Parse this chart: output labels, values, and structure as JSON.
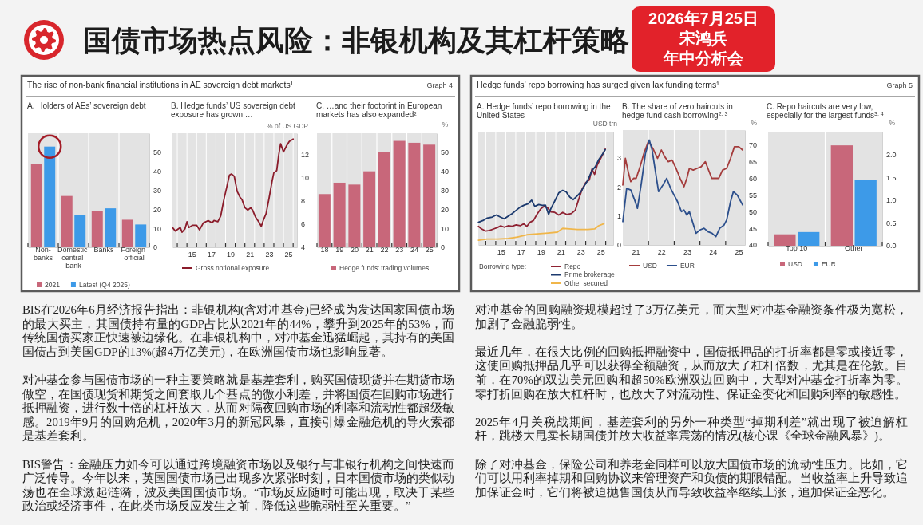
{
  "chart_data": [
    {
      "type": "other",
      "title": "国债市场热点风险：非银机构及其杠杆策略",
      "annotations": [
        "2026年7月25日",
        "宋鸿兵",
        "年中分析会"
      ]
    },
    {
      "type": "other",
      "title": "The rise of non-bank financial institutions in AE sovereign debt markets¹",
      "annotations": [
        "Graph 4"
      ]
    },
    {
      "type": "bar",
      "title": "A. Holders of AEs’ sovereign debt",
      "categories": [
        "Non-banks",
        "Domestic central bank",
        "Banks",
        "Foreign official"
      ],
      "series": [
        {
          "name": "2021",
          "color": "#c8677a",
          "values": [
            44,
            27,
            19,
            14.5
          ]
        },
        {
          "name": "Latest (Q4 2025)",
          "color": "#3d9ae8",
          "values": [
            53,
            17,
            20.5,
            12
          ]
        }
      ],
      "ylim": [
        0,
        60
      ],
      "yticks": [
        0,
        10,
        20,
        30,
        40,
        50
      ],
      "grid": "x",
      "legend": "bottom"
    },
    {
      "type": "line",
      "title": "B. Hedge funds’ US sovereign debt exposure has grown …",
      "ylabel": "% of US GDP",
      "series": [
        {
          "name": "Gross notional exposure",
          "color": "#8b1c2b",
          "x": [
            13.0,
            13.3,
            13.8,
            14.0,
            14.3,
            14.5,
            14.7,
            15.1,
            15.5,
            15.8,
            16.2,
            16.7,
            17.1,
            17.3,
            17.7,
            18.0,
            18.3,
            18.6,
            18.9,
            19.1,
            19.4,
            19.7,
            20.0,
            20.2,
            20.5,
            20.8,
            21.1,
            21.3,
            21.6,
            22.0,
            22.2,
            22.4,
            22.7,
            23.0,
            23.3,
            23.5,
            23.8,
            24.0,
            24.2,
            24.5,
            24.8,
            25.1,
            25.5
          ],
          "values": [
            5.7,
            5.4,
            5.7,
            5.3,
            5.6,
            6.2,
            5.7,
            5.9,
            5.9,
            5.5,
            6.1,
            6.3,
            6.1,
            6.3,
            6.2,
            6.7,
            8.0,
            9.1,
            10.2,
            10.3,
            10.1,
            8.8,
            8.3,
            8.1,
            7.4,
            7.2,
            7.4,
            7.2,
            6.6,
            6.1,
            5.8,
            6.3,
            6.9,
            8.2,
            9.6,
            10.4,
            10.6,
            11.9,
            12.9,
            12.2,
            12.7,
            13.1,
            13.3
          ]
        }
      ],
      "xlim": [
        13.0,
        25.9
      ],
      "xticks": [
        {
          "value": 13.5,
          "label": null
        },
        {
          "value": 14.5,
          "label": null
        },
        15,
        {
          "value": 15.5,
          "label": null
        },
        {
          "value": 16.5,
          "label": null
        },
        17,
        {
          "value": 17.5,
          "label": null
        },
        {
          "value": 18.5,
          "label": null
        },
        19,
        {
          "value": 19.5,
          "label": null
        },
        {
          "value": 20.5,
          "label": null
        },
        21,
        {
          "value": 21.5,
          "label": null
        },
        {
          "value": 22.5,
          "label": null
        },
        23,
        {
          "value": 23.5,
          "label": null
        },
        {
          "value": 24.5,
          "label": null
        },
        25,
        {
          "value": 25.5,
          "label": null
        }
      ],
      "ylim": [
        4,
        13.8
      ],
      "yticks": [
        4,
        6,
        8,
        10,
        12
      ],
      "grid": "x",
      "legend": "bottom"
    },
    {
      "type": "bar",
      "title": "C. …and their footprint in European markets has also expanded²",
      "ylabel": "%",
      "categories": [
        "18",
        "19",
        "20",
        "21",
        "22",
        "23",
        "24",
        "25"
      ],
      "series": [
        {
          "name": "Hedge funds’ trading volumes",
          "color": "#c8677a",
          "values": [
            28,
            34,
            33,
            40,
            50,
            56,
            55,
            54
          ]
        }
      ],
      "ylim": [
        0,
        60
      ],
      "yticks": [
        0,
        10,
        20,
        30,
        40,
        50
      ],
      "grid": "x",
      "legend": "bottom"
    },
    {
      "type": "other",
      "title": "Hedge funds’ repo borrowing has surged given lax funding terms¹",
      "annotations": [
        "Graph 5"
      ]
    },
    {
      "type": "line",
      "title": "A. Hedge funds’ repo borrowing in the United States",
      "ylabel": "USD trn",
      "legend_title": "Borrowing type:",
      "series": [
        {
          "name": "Repo",
          "color": "#8f2232",
          "x": [
            12.77,
            13.09,
            13.48,
            13.88,
            14.28,
            14.68,
            15.0,
            15.35,
            15.74,
            16.14,
            16.54,
            16.94,
            17.29,
            17.61,
            17.93,
            18.27,
            18.62,
            19.0,
            19.34,
            19.68,
            20.0,
            20.4,
            20.8,
            21.2,
            21.6,
            22.07,
            22.45,
            22.79,
            23.14,
            23.51,
            23.86,
            24.12,
            24.39,
            24.65,
            24.92,
            25.19,
            25.45
          ],
          "values": [
            0.64,
            0.55,
            0.48,
            0.5,
            0.55,
            0.6,
            0.66,
            0.61,
            0.66,
            0.64,
            0.69,
            0.66,
            0.73,
            0.64,
            0.78,
            0.84,
            1.05,
            1.24,
            1.33,
            1.28,
            1.14,
            1.12,
            1.03,
            1.12,
            1.05,
            1.08,
            1.19,
            1.56,
            1.92,
            2.15,
            2.24,
            2.61,
            2.43,
            2.75,
            2.93,
            3.11,
            3.3
          ]
        },
        {
          "name": "Prime brokerage",
          "color": "#1c3a6e",
          "x": [
            12.77,
            13.22,
            13.62,
            14.15,
            14.55,
            14.95,
            15.35,
            15.74,
            16.14,
            16.54,
            16.94,
            17.34,
            17.74,
            18.09,
            18.4,
            18.8,
            19.15,
            19.47,
            19.79,
            20.0,
            20.4,
            20.8,
            21.2,
            21.54,
            21.91,
            22.26,
            22.66,
            22.98,
            23.32,
            23.72,
            24.12,
            24.47,
            24.79,
            25.19,
            25.45
          ],
          "values": [
            0.78,
            0.84,
            0.92,
            0.96,
            1.03,
            0.96,
            0.9,
            0.99,
            1.08,
            1.19,
            1.3,
            1.37,
            1.42,
            1.54,
            1.33,
            1.39,
            1.36,
            1.37,
            1.05,
            1.24,
            1.51,
            1.79,
            1.88,
            1.83,
            1.65,
            1.56,
            1.69,
            1.81,
            2.01,
            2.24,
            2.56,
            2.7,
            2.93,
            3.13,
            3.28
          ]
        },
        {
          "name": "Other secured",
          "color": "#f0b64a",
          "x": [
            12.77,
            13.62,
            14.68,
            15.74,
            16.68,
            17.61,
            18.67,
            19.73,
            20.66,
            21.2,
            21.86,
            22.66,
            23.72,
            24.39,
            24.79,
            25.32
          ],
          "values": [
            0.16,
            0.2,
            0.2,
            0.22,
            0.27,
            0.35,
            0.38,
            0.41,
            0.44,
            0.57,
            0.55,
            0.53,
            0.53,
            0.55,
            0.66,
            0.73
          ]
        }
      ],
      "xlim": [
        12.75,
        26.25
      ],
      "xticks": [
        {
          "value": 13.5,
          "label": null
        },
        {
          "value": 14.5,
          "label": null
        },
        15,
        {
          "value": 15.5,
          "label": null
        },
        {
          "value": 16.5,
          "label": null
        },
        17,
        {
          "value": 17.5,
          "label": null
        },
        {
          "value": 18.5,
          "label": null
        },
        19,
        {
          "value": 19.5,
          "label": null
        },
        {
          "value": 20.5,
          "label": null
        },
        21,
        {
          "value": 21.5,
          "label": null
        },
        {
          "value": 22.5,
          "label": null
        },
        23,
        {
          "value": 23.5,
          "label": null
        },
        {
          "value": 24.5,
          "label": null
        },
        25,
        {
          "value": 25.5,
          "label": null
        }
      ],
      "ylim": [
        0,
        3.9
      ],
      "yticks": [
        0,
        1,
        2,
        3
      ],
      "grid": "x",
      "legend": "bottom"
    },
    {
      "type": "line",
      "title": "B. The share of zero haircuts in hedge fund cash borrowing$^{2, 3}$",
      "ylabel": "%",
      "series": [
        {
          "name": "USD",
          "color": "#a43c3c",
          "x": [
            20.5,
            20.6,
            20.71,
            20.81,
            20.92,
            21.02,
            21.17,
            21.32,
            21.49,
            21.59,
            21.7,
            21.85,
            22.0,
            22.13,
            22.27,
            22.42,
            22.57,
            22.73,
            22.88,
            22.99,
            23.09,
            23.24,
            23.39,
            23.55,
            23.71,
            23.81,
            23.96,
            24.07,
            24.23,
            24.38,
            24.54,
            24.69,
            24.84,
            25.01,
            25.16
          ],
          "values": [
            58,
            66,
            62,
            59,
            60,
            60,
            63.5,
            67.5,
            71,
            70,
            68.5,
            66,
            68.5,
            66.5,
            65,
            65.5,
            63,
            60,
            57.5,
            60,
            63,
            62.5,
            63,
            63.5,
            65,
            63,
            60,
            60,
            60,
            62.5,
            63,
            66,
            69.5,
            69.5,
            68.5
          ]
        },
        {
          "name": "EUR",
          "color": "#2c4f8c",
          "x": [
            20.5,
            20.65,
            20.81,
            20.96,
            21.07,
            21.22,
            21.38,
            21.53,
            21.64,
            21.79,
            21.89,
            22.06,
            22.21,
            22.36,
            22.46,
            22.63,
            22.78,
            22.88,
            22.99,
            23.09,
            23.19,
            23.35,
            23.5,
            23.66,
            23.81,
            23.97,
            24.12,
            24.27,
            24.44,
            24.54,
            24.69,
            24.8,
            24.95,
            25.16
          ],
          "values": [
            47,
            57,
            56.5,
            53.5,
            51,
            58.5,
            67.5,
            71.5,
            68.5,
            61,
            56,
            58,
            60,
            57,
            55.5,
            53,
            50,
            50.5,
            49,
            50,
            47.5,
            43.5,
            44.5,
            45,
            44,
            43.5,
            42.5,
            45,
            46,
            47.5,
            53,
            56,
            55,
            52
          ]
        }
      ],
      "xlim": [
        20.5,
        25.25
      ],
      "xticks": [
        21,
        {
          "value": 21.5,
          "label": null
        },
        22,
        {
          "value": 22.5,
          "label": null
        },
        23,
        {
          "value": 23.5,
          "label": null
        },
        24,
        {
          "value": 24.5,
          "label": null
        },
        25
      ],
      "ylim": [
        40,
        74.5
      ],
      "yticks": [
        40,
        45,
        50,
        55,
        60,
        65,
        70
      ],
      "grid": "x",
      "legend": "bottom"
    },
    {
      "type": "bar",
      "title": "C. Repo haircuts are very low, especially for the largest funds$^{3, 4}$",
      "ylabel": "%",
      "categories": [
        "Top 10",
        "Other"
      ],
      "series": [
        {
          "name": "USD",
          "color": "#c8677a",
          "values": [
            0.25,
            2.2
          ]
        },
        {
          "name": "EUR",
          "color": "#3d9ae8",
          "values": [
            0.3,
            1.45
          ]
        }
      ],
      "ylim": [
        0,
        2.5
      ],
      "yticks": [
        {
          "value": 0,
          "label": "0.0"
        },
        {
          "value": 0.5,
          "label": "0.5"
        },
        {
          "value": 1,
          "label": "1.0"
        },
        {
          "value": 1.5,
          "label": "1.5"
        },
        {
          "value": 2,
          "label": "2.0"
        }
      ],
      "grid": "x",
      "legend": "bottom"
    },
    {
      "type": "other",
      "annotations": [
        "BIS在2026年6月经济报告指出：非银机构(含对冲基金)已经成为发达国家国债市场的最大买主，其国债持有量的GDP占比从2021年的44%，攀升到2025年的53%，而传统国债买家正快速被边缘化。在非银机构中，对冲基金迅猛崛起，其持有的美国国债占到美国GDP的13%(超4万亿美元)，在欧洲国债市场也影响显著。",
        "对冲基金参与国债市场的一种主要策略就是基差套利，购买国债现货并在期货市场做空，在国债现货和期货之间套取几个基点的微小利差，并将国债在回购市场进行抵押融资，进行数十倍的杠杆放大，从而对隔夜回购市场的利率和流动性都超级敏感。2019年9月的回购危机，2020年3月的新冠风暴，直接引爆金融危机的导火索都是基差套利。",
        "BIS警告：金融压力如今可以通过跨境融资市场以及银行与非银行机构之间快速而广泛传导。今年以来，英国国债市场已出现多次紧张时刻，日本国债市场的类似动荡也在全球激起涟漪，波及美国国债市场。“市场反应随时可能出现，取决于某些政治或经济事件，在此类市场反应发生之前，降低这些脆弱性至关重要。”"
      ]
    },
    {
      "type": "other",
      "annotations": [
        "对冲基金的回购融资规模超过了3万亿美元，而大型对冲基金融资条件极为宽松，加剧了金融脆弱性。",
        "最近几年，在很大比例的回购抵押融资中，国债抵押品的打折率都是零或接近零，这使回购抵押品几乎可以获得全额融资，从而放大了杠杆倍数，尤其是在伦敦。目前，在70%的双边美元回购和超50%欧洲双边回购中，大型对冲基金打折率为零。零打折回购在放大杠杆时，也放大了对流动性、保证金变化和回购利率的敏感性。",
        "2025年4月关税战期间，基差套利的另外一种类型“掉期利差”就出现了被迫解杠杆，跳楼大甩卖长期国债并放大收益率震荡的情况(核心课《全球金融风暴》)。",
        "除了对冲基金，保险公司和养老金同样可以放大国债市场的流动性压力。比如，它们可以用利率掉期和回购协议来管理资产和负债的期限错配。当收益率上升导致追加保证金时，它们将被迫抛售国债从而导致收益率继续上涨，追加保证金恶化。"
      ]
    }
  ]
}
